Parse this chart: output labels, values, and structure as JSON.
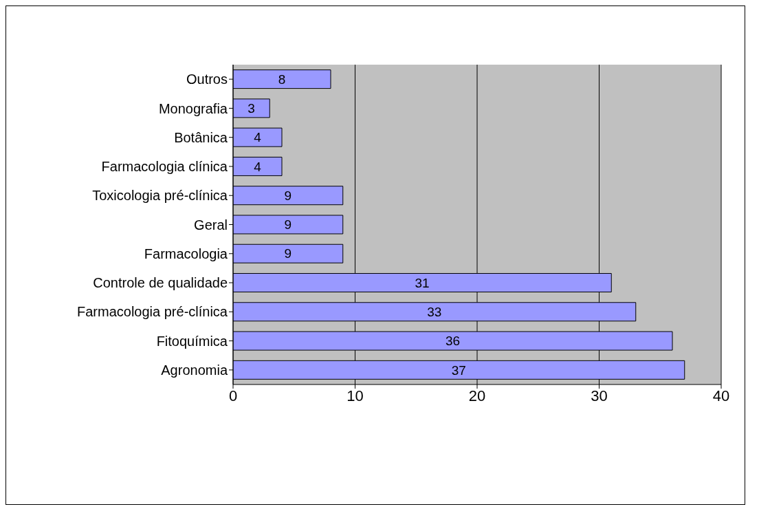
{
  "chart_data": {
    "type": "bar",
    "orientation": "horizontal",
    "categories": [
      "Outros",
      "Monografia",
      "Botânica",
      "Farmacologia clínica",
      "Toxicologia pré-clínica",
      "Geral",
      "Farmacologia",
      "Controle de qualidade",
      "Farmacologia pré-clínica",
      "Fitoquímica",
      "Agronomia"
    ],
    "values": [
      8,
      3,
      4,
      4,
      9,
      9,
      9,
      31,
      33,
      36,
      37
    ],
    "color": "#9999ff",
    "xlim": [
      0,
      40
    ],
    "xticks": [
      0,
      10,
      20,
      30,
      40
    ],
    "grid": "x",
    "data_labels": true
  }
}
